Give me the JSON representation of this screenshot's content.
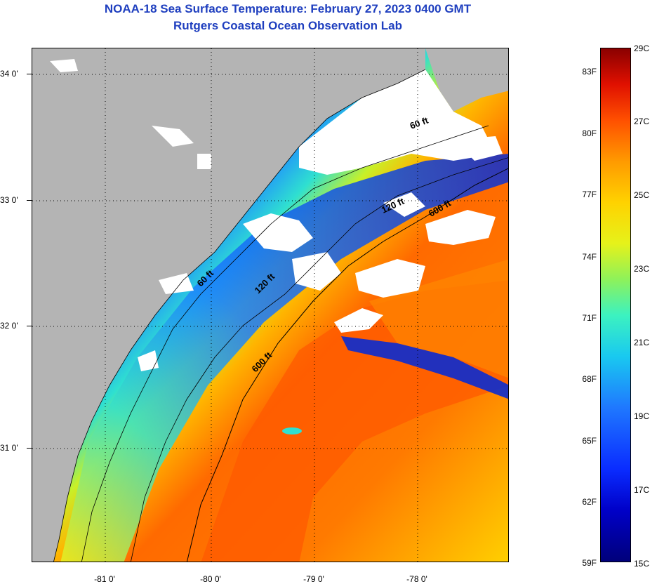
{
  "title": {
    "line1": "NOAA-18 Sea Surface Temperature:  February 27, 2023 0400 GMT",
    "line2": "Rutgers Coastal Ocean Observation Lab"
  },
  "map": {
    "lat_labels": [
      "34 0'",
      "33 0'",
      "32 0'",
      "31 0'"
    ],
    "lon_labels": [
      "-81 0'",
      "-80 0'",
      "-79 0'",
      "-78 0'"
    ],
    "isobath_labels": [
      "60 ft",
      "120 ft",
      "600 ft",
      "60 ft",
      "120 ft",
      "600 ft"
    ]
  },
  "colorbar": {
    "fahrenheit": [
      "83F",
      "80F",
      "77F",
      "74F",
      "71F",
      "68F",
      "65F",
      "62F",
      "59F"
    ],
    "celsius": [
      "29C",
      "27C",
      "25C",
      "23C",
      "21C",
      "19C",
      "17C",
      "15C"
    ]
  },
  "colors": {
    "land": "#b4b4b4",
    "cloud": "#ffffff",
    "cold": "#0a2bd0",
    "warm": "#ff5a00"
  }
}
